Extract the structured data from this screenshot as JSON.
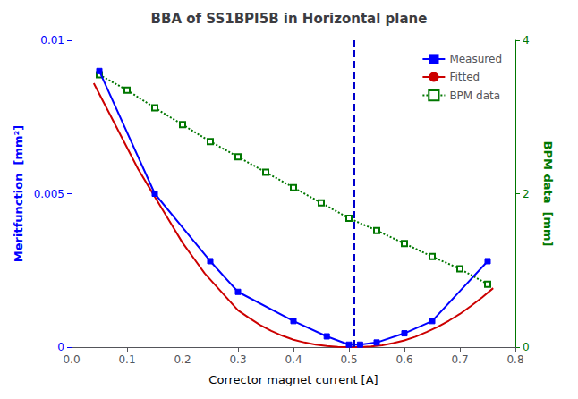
{
  "chart_data": {
    "type": "line",
    "title": "BBA of SS1BPI5B in Horizontal plane",
    "x_label": "Corrector magnet current [A]",
    "y_label": "Meritfunction  [mm²]",
    "y2_label": "BPM data  [mm]",
    "xlim": [
      0,
      0.8
    ],
    "xticks": [
      {
        "value": 0,
        "label": "0.0"
      },
      0.1,
      0.2,
      0.3,
      0.4,
      0.5,
      0.6,
      0.7,
      0.8
    ],
    "ylim": [
      0,
      0.01
    ],
    "yticks": [
      0,
      0.005,
      0.01
    ],
    "y2lim": [
      0,
      4
    ],
    "y2ticks": [
      0,
      2,
      4
    ],
    "grid": false,
    "legend": "upper right",
    "series": [
      {
        "name": "Measured",
        "color": "#0000ff",
        "marker": "square",
        "line_style": "solid",
        "x": [
          0.05,
          0.15,
          0.25,
          0.3,
          0.4,
          0.46,
          0.5,
          0.52,
          0.55,
          0.6,
          0.65,
          0.75
        ],
        "values": [
          0.009,
          0.005,
          0.0028,
          0.0018,
          0.00085,
          0.00035,
          8e-05,
          8e-05,
          0.00015,
          0.00045,
          0.00085,
          0.0028
        ]
      },
      {
        "name": "Fitted",
        "color": "#cc0000",
        "marker": "none",
        "line_style": "solid",
        "x": [
          0.04,
          0.06,
          0.08,
          0.1,
          0.12,
          0.14,
          0.16,
          0.18,
          0.2,
          0.22,
          0.24,
          0.26,
          0.28,
          0.3,
          0.32,
          0.34,
          0.36,
          0.38,
          0.4,
          0.42,
          0.44,
          0.46,
          0.48,
          0.5,
          0.51,
          0.52,
          0.54,
          0.56,
          0.58,
          0.6,
          0.62,
          0.64,
          0.66,
          0.68,
          0.7,
          0.72,
          0.74,
          0.76
        ],
        "values": [
          0.0086,
          0.0079,
          0.0072,
          0.0065,
          0.0058,
          0.0052,
          0.0046,
          0.004,
          0.0034,
          0.0029,
          0.0024,
          0.002,
          0.0016,
          0.0012,
          0.00095,
          0.00072,
          0.00053,
          0.00037,
          0.00024,
          0.00015,
          8e-05,
          3.5e-05,
          8e-06,
          1e-06,
          1e-06,
          3e-06,
          2e-05,
          6e-05,
          0.00013,
          0.00022,
          0.00034,
          0.00049,
          0.00066,
          0.00086,
          0.00108,
          0.00134,
          0.00162,
          0.00192
        ]
      },
      {
        "name": "BPM data",
        "color": "#007700",
        "marker": "open_square",
        "line_style": "dotted",
        "axis": "y2",
        "x": [
          0.05,
          0.1,
          0.15,
          0.2,
          0.25,
          0.3,
          0.35,
          0.4,
          0.45,
          0.5,
          0.55,
          0.6,
          0.65,
          0.7,
          0.75
        ],
        "values": [
          3.55,
          3.35,
          3.12,
          2.9,
          2.68,
          2.48,
          2.28,
          2.08,
          1.88,
          1.68,
          1.52,
          1.35,
          1.18,
          1.02,
          0.82
        ]
      }
    ],
    "annotations": [
      {
        "type": "vline",
        "x": 0.51,
        "color": "#0000cc",
        "line_style": "dashed"
      }
    ]
  }
}
